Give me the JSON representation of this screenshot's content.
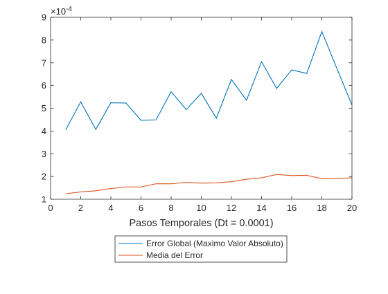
{
  "chart_data": {
    "type": "line",
    "title": "",
    "xlabel": "Pasos Temporales (Dt = 0.0001)",
    "ylabel": "",
    "xlim": [
      0,
      20
    ],
    "ylim": [
      1,
      9
    ],
    "xticks": [
      0,
      2,
      4,
      6,
      8,
      10,
      12,
      14,
      16,
      18,
      20
    ],
    "yticks": [
      1,
      2,
      3,
      4,
      5,
      6,
      7,
      8,
      9
    ],
    "y_exponent_multiplier": "×10",
    "y_exponent_power": "-4",
    "grid": false,
    "legend_position": "bottom-center-outside",
    "series": [
      {
        "name": "Error Global (Maximo Valor Absoluto)",
        "color": "#0072BD",
        "x": [
          1,
          2,
          3,
          4,
          5,
          6,
          7,
          8,
          9,
          10,
          11,
          12,
          13,
          14,
          15,
          16,
          17,
          18,
          19,
          20
        ],
        "values": [
          4.05,
          5.28,
          4.07,
          5.24,
          5.23,
          4.47,
          4.49,
          5.73,
          4.94,
          5.66,
          4.56,
          6.27,
          5.35,
          7.05,
          5.87,
          6.69,
          6.53,
          8.37,
          6.75,
          5.14
        ]
      },
      {
        "name": "Media del Error",
        "color": "#D95319",
        "x": [
          1,
          2,
          3,
          4,
          5,
          6,
          7,
          8,
          9,
          10,
          11,
          12,
          13,
          14,
          15,
          16,
          17,
          18,
          19,
          20
        ],
        "values": [
          1.24,
          1.32,
          1.37,
          1.47,
          1.54,
          1.54,
          1.68,
          1.68,
          1.74,
          1.71,
          1.72,
          1.77,
          1.88,
          1.94,
          2.09,
          2.04,
          2.05,
          1.9,
          1.91,
          1.94
        ]
      }
    ]
  }
}
